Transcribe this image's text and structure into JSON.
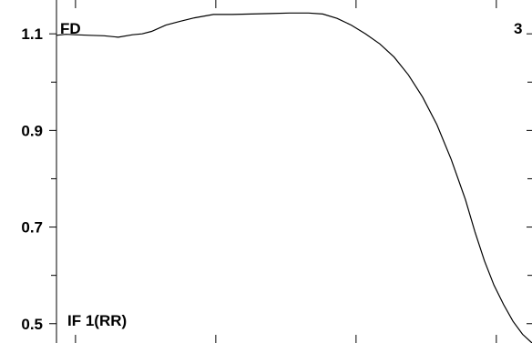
{
  "chart_data": {
    "type": "line",
    "title": "",
    "xlabel": "",
    "ylabel": "",
    "corner_labels": {
      "top_left": "FD",
      "top_right": "3",
      "bottom_left": "IF 1(RR)"
    },
    "ylim": [
      0.46,
      1.17
    ],
    "y_major_ticks": [
      0.5,
      0.7,
      0.9,
      1.1
    ],
    "y_minor_ticks": [
      0.6,
      0.8,
      1.0
    ],
    "y_tick_labels": [
      "0.5",
      "0.7",
      "0.9",
      "1.1"
    ],
    "xlim": [
      0,
      1
    ],
    "x_ticks": [
      0.04,
      0.335,
      0.63,
      0.925
    ],
    "grid": false,
    "series": [
      {
        "color": "#000000",
        "x": [
          0.0,
          0.02,
          0.04,
          0.07,
          0.1,
          0.13,
          0.16,
          0.18,
          0.2,
          0.23,
          0.26,
          0.29,
          0.33,
          0.37,
          0.41,
          0.45,
          0.49,
          0.53,
          0.56,
          0.59,
          0.62,
          0.65,
          0.68,
          0.71,
          0.74,
          0.77,
          0.8,
          0.83,
          0.86,
          0.88,
          0.9,
          0.92,
          0.94,
          0.96,
          0.98,
          1.0
        ],
        "y": [
          1.097,
          1.099,
          1.098,
          1.097,
          1.096,
          1.093,
          1.098,
          1.1,
          1.105,
          1.118,
          1.126,
          1.133,
          1.14,
          1.14,
          1.141,
          1.142,
          1.143,
          1.143,
          1.141,
          1.132,
          1.118,
          1.1,
          1.079,
          1.052,
          1.015,
          0.969,
          0.912,
          0.84,
          0.757,
          0.69,
          0.63,
          0.58,
          0.54,
          0.505,
          0.478,
          0.46
        ]
      }
    ]
  }
}
